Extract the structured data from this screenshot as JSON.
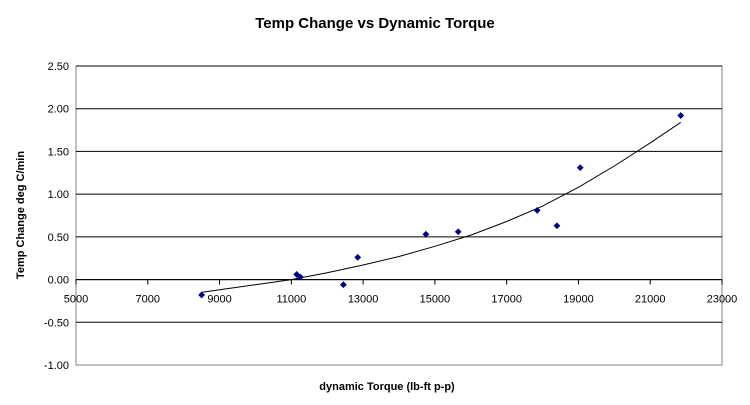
{
  "chart_data": {
    "type": "scatter",
    "title": "Temp Change vs Dynamic Torque",
    "xlabel": "dynamic Torque (lb-ft p-p)",
    "ylabel": "Temp Change deg C/min",
    "xlim": [
      5000,
      23000
    ],
    "ylim": [
      -1.0,
      2.5
    ],
    "x_ticks": [
      "5000",
      "7000",
      "9000",
      "11000",
      "13000",
      "15000",
      "17000",
      "19000",
      "21000",
      "23000"
    ],
    "y_ticks": [
      "2.50",
      "2.00",
      "1.50",
      "1.00",
      "0.50",
      "0.00",
      "-0.50",
      "-1.00"
    ],
    "grid": "horizontal",
    "legend": "none",
    "marker_color": "#000080",
    "series": [
      {
        "x": [
          8500,
          11150,
          11250,
          12450,
          12850,
          14750,
          15650,
          17850,
          18400,
          19050,
          21850
        ],
        "y": [
          -0.18,
          0.06,
          0.03,
          -0.06,
          0.26,
          0.53,
          0.56,
          0.81,
          0.63,
          1.31,
          1.92
        ]
      }
    ],
    "trendline": {
      "x": [
        8500,
        9000,
        10000,
        11000,
        12000,
        13000,
        14000,
        15000,
        16000,
        17000,
        18000,
        19000,
        20000,
        21000,
        21850
      ],
      "y": [
        -0.15,
        -0.12,
        -0.06,
        0.0,
        0.08,
        0.17,
        0.27,
        0.39,
        0.52,
        0.68,
        0.86,
        1.08,
        1.33,
        1.6,
        1.84
      ]
    }
  }
}
